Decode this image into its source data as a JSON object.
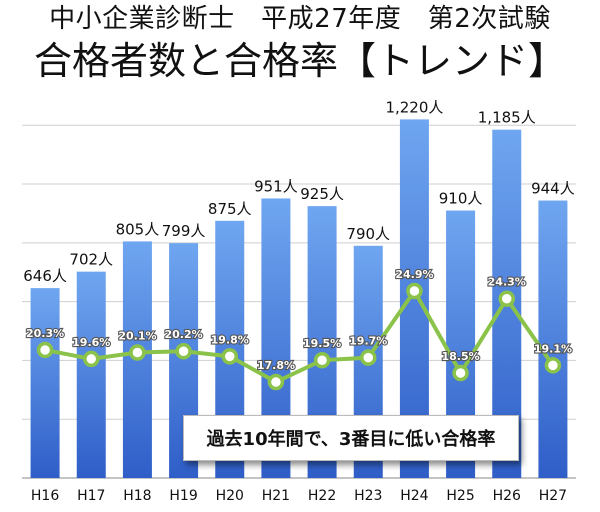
{
  "header": {
    "title_line1": "中小企業診断士　平成27年度　第2次試験",
    "title_line2": "合格者数と合格率【トレンド】"
  },
  "annotation": "過去10年間で、3番目に低い合格率",
  "colors": {
    "bar_top": "#6fa6f0",
    "bar_bottom": "#2f5ec8",
    "line": "#8bc34a",
    "grid": "#cfcfcf"
  },
  "chart_data": {
    "type": "bar",
    "categories": [
      "H16",
      "H17",
      "H18",
      "H19",
      "H20",
      "H21",
      "H22",
      "H23",
      "H24",
      "H25",
      "H26",
      "H27"
    ],
    "values": [
      646,
      702,
      805,
      799,
      875,
      951,
      925,
      790,
      1220,
      910,
      1185,
      944
    ],
    "value_labels": [
      "646人",
      "702人",
      "805人",
      "799人",
      "875人",
      "951人",
      "925人",
      "790人",
      "1,220人",
      "910人",
      "1,185人",
      "944人"
    ],
    "ylim": [
      0,
      1320
    ],
    "grid": true,
    "series": [
      {
        "name": "合格者数",
        "type": "bar",
        "values": [
          646,
          702,
          805,
          799,
          875,
          951,
          925,
          790,
          1220,
          910,
          1185,
          944
        ]
      },
      {
        "name": "合格率",
        "type": "line",
        "values": [
          20.3,
          19.6,
          20.1,
          20.2,
          19.8,
          17.8,
          19.5,
          19.7,
          24.9,
          18.5,
          24.3,
          19.1
        ],
        "labels": [
          "20.3%",
          "19.6%",
          "20.1%",
          "20.2%",
          "19.8%",
          "17.8%",
          "19.5%",
          "19.7%",
          "24.9%",
          "18.5%",
          "24.3%",
          "19.1%"
        ]
      }
    ]
  }
}
